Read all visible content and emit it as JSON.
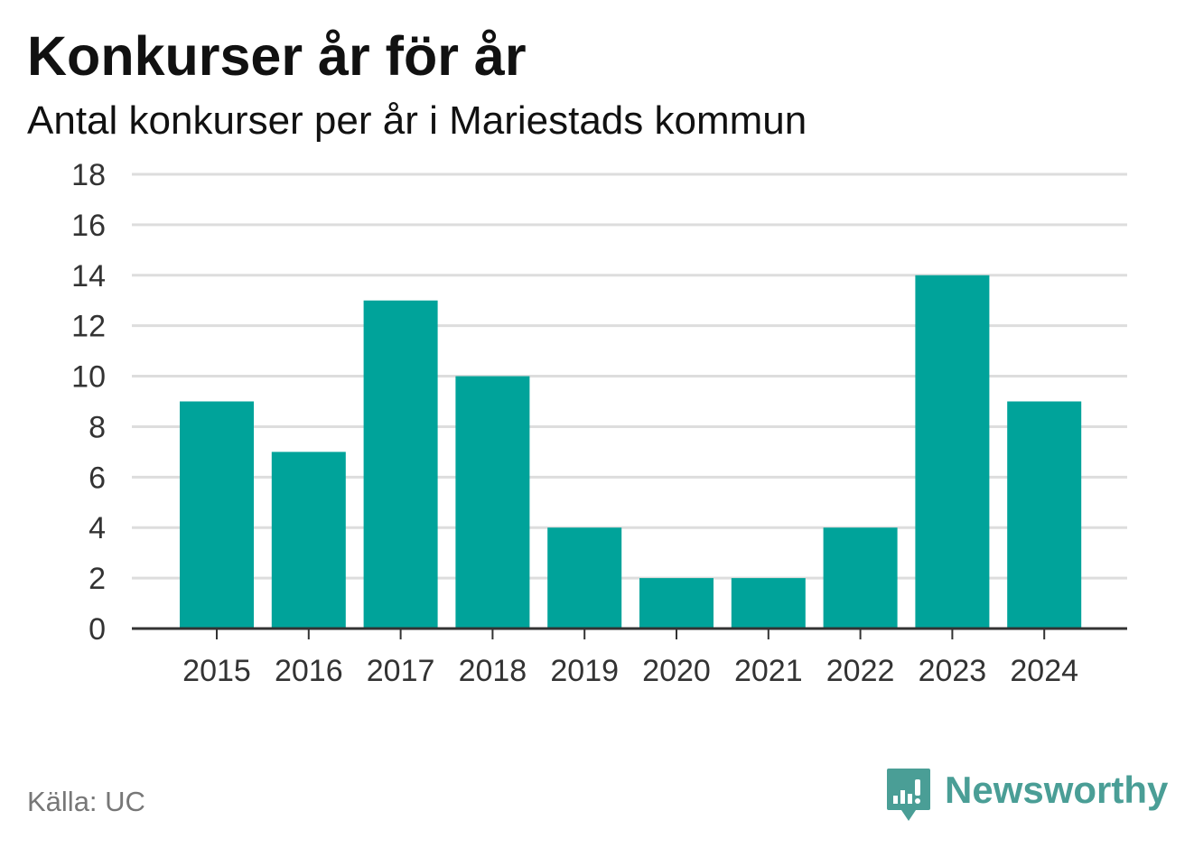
{
  "header": {
    "title": "Konkurser år för år",
    "subtitle": "Antal konkurser per år i Mariestads kommun"
  },
  "footer": {
    "source": "Källa: UC",
    "brand_name": "Newsworthy"
  },
  "colors": {
    "bar": "#00a39a",
    "grid": "#dddddd",
    "axis": "#333333",
    "brand": "#4a9e96"
  },
  "chart_data": {
    "type": "bar",
    "categories": [
      "2015",
      "2016",
      "2017",
      "2018",
      "2019",
      "2020",
      "2021",
      "2022",
      "2023",
      "2024"
    ],
    "values": [
      9,
      7,
      13,
      10,
      4,
      2,
      2,
      4,
      14,
      9
    ],
    "title": "Konkurser år för år",
    "subtitle": "Antal konkurser per år i Mariestads kommun",
    "xlabel": "",
    "ylabel": "",
    "ylim": [
      0,
      18
    ],
    "yticks": [
      0,
      2,
      4,
      6,
      8,
      10,
      12,
      14,
      16,
      18
    ],
    "grid": true,
    "legend": "none"
  }
}
